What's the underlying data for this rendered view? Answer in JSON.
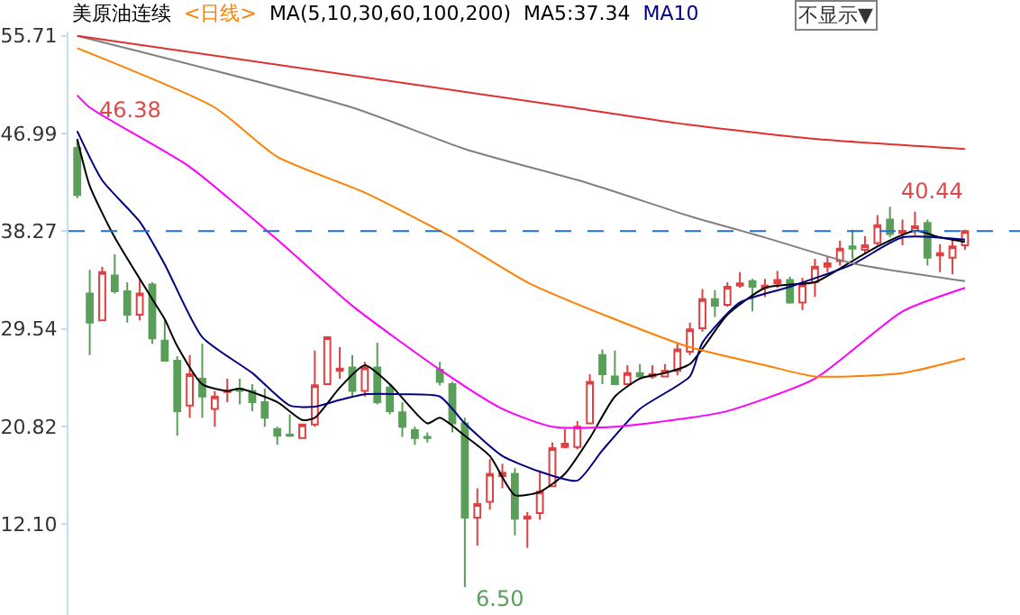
{
  "chart_data": {
    "type": "candlestick",
    "title": "美原油连续",
    "subtitle": "<日线>",
    "legend_title": "MA(5,10,30,60,100,200)",
    "legend": "top",
    "categories": [
      null,
      null,
      null,
      null,
      null,
      null,
      null,
      null,
      null,
      null,
      null,
      null,
      null,
      null,
      null,
      null,
      null,
      null,
      null,
      null,
      null,
      null,
      null,
      null,
      null,
      null,
      null,
      null,
      null,
      null,
      null,
      null,
      null,
      null,
      null,
      null,
      null,
      null,
      null,
      null,
      null,
      null,
      null,
      null,
      null,
      null,
      null,
      null,
      null,
      null,
      null,
      null,
      null,
      null,
      null,
      null,
      null,
      null,
      null,
      null,
      null,
      null,
      null,
      null,
      null,
      null,
      null,
      null,
      null,
      null,
      null,
      null
    ],
    "ohlc": [
      [
        45.7,
        46.38,
        41.2,
        41.5
      ],
      [
        32.7,
        34.8,
        27.2,
        30.1
      ],
      [
        30.3,
        35.1,
        30.3,
        34.6
      ],
      [
        34.3,
        36.2,
        32.7,
        32.9
      ],
      [
        32.9,
        33.7,
        30.1,
        30.8
      ],
      [
        30.8,
        34.0,
        30.3,
        32.7
      ],
      [
        33.5,
        33.7,
        28.2,
        28.7
      ],
      [
        28.5,
        30.3,
        26.7,
        26.7
      ],
      [
        26.7,
        27.1,
        20.0,
        22.2
      ],
      [
        22.7,
        27.2,
        21.6,
        25.5
      ],
      [
        25.1,
        28.2,
        21.6,
        23.5
      ],
      [
        22.4,
        24.0,
        20.8,
        23.5
      ],
      [
        23.9,
        25.1,
        23.0,
        24.0
      ],
      [
        24.2,
        25.1,
        22.8,
        24.0
      ],
      [
        24.0,
        24.6,
        22.2,
        23.0
      ],
      [
        23.0,
        24.2,
        20.8,
        21.6
      ],
      [
        20.6,
        20.8,
        19.2,
        20.0
      ],
      [
        20.1,
        21.9,
        19.9,
        20.0
      ],
      [
        19.8,
        21.0,
        19.8,
        21.0
      ],
      [
        21.0,
        27.6,
        20.8,
        24.5
      ],
      [
        24.6,
        28.9,
        24.6,
        28.8
      ],
      [
        25.8,
        27.9,
        25.1,
        26.0
      ],
      [
        26.1,
        27.2,
        23.5,
        24.0
      ],
      [
        24.0,
        26.6,
        23.5,
        26.1
      ],
      [
        26.1,
        28.3,
        22.8,
        23.0
      ],
      [
        24.3,
        24.6,
        21.9,
        22.2
      ],
      [
        22.1,
        23.0,
        19.9,
        20.8
      ],
      [
        20.5,
        20.8,
        19.2,
        19.8
      ],
      [
        19.9,
        20.3,
        19.4,
        19.8
      ],
      [
        25.9,
        26.6,
        24.5,
        24.8
      ],
      [
        24.6,
        24.8,
        20.3,
        21.1
      ],
      [
        21.1,
        21.6,
        6.5,
        12.7
      ],
      [
        12.7,
        15.3,
        10.2,
        13.9
      ],
      [
        14.1,
        17.9,
        13.4,
        16.6
      ],
      [
        16.4,
        17.5,
        15.3,
        16.7
      ],
      [
        16.6,
        17.1,
        11.1,
        12.6
      ],
      [
        12.6,
        13.2,
        10.0,
        12.8
      ],
      [
        13.1,
        16.9,
        12.5,
        15.0
      ],
      [
        15.5,
        19.4,
        15.5,
        18.9
      ],
      [
        19.0,
        20.6,
        18.9,
        19.3
      ],
      [
        19.0,
        21.3,
        18.8,
        20.8
      ],
      [
        21.1,
        25.5,
        21.1,
        24.8
      ],
      [
        27.2,
        27.7,
        24.6,
        25.5
      ],
      [
        25.3,
        27.6,
        24.6,
        24.6
      ],
      [
        24.6,
        26.3,
        24.5,
        25.6
      ],
      [
        25.6,
        26.4,
        25.1,
        25.3
      ],
      [
        25.3,
        26.3,
        25.1,
        25.5
      ],
      [
        25.3,
        26.4,
        25.3,
        25.8
      ],
      [
        25.8,
        28.3,
        25.4,
        27.7
      ],
      [
        27.5,
        30.1,
        27.2,
        29.5
      ],
      [
        29.6,
        33.1,
        29.3,
        32.2
      ],
      [
        32.2,
        33.0,
        30.6,
        31.6
      ],
      [
        31.7,
        33.7,
        31.5,
        33.3
      ],
      [
        33.4,
        34.6,
        33.2,
        33.6
      ],
      [
        33.8,
        34.0,
        31.1,
        33.3
      ],
      [
        33.2,
        34.0,
        32.4,
        33.4
      ],
      [
        33.6,
        34.7,
        33.2,
        33.9
      ],
      [
        33.9,
        34.2,
        31.8,
        31.9
      ],
      [
        31.9,
        34.1,
        31.2,
        33.5
      ],
      [
        33.7,
        35.8,
        32.4,
        35.1
      ],
      [
        35.1,
        36.0,
        34.6,
        35.4
      ],
      [
        35.6,
        37.4,
        35.2,
        36.7
      ],
      [
        36.9,
        38.4,
        35.8,
        36.7
      ],
      [
        36.6,
        37.8,
        36.3,
        37.0
      ],
      [
        37.2,
        39.7,
        37.0,
        38.8
      ],
      [
        39.3,
        40.44,
        37.7,
        38.0
      ],
      [
        38.1,
        39.3,
        37.0,
        38.3
      ],
      [
        38.3,
        40.0,
        37.9,
        38.7
      ],
      [
        39.0,
        39.3,
        35.2,
        35.9
      ],
      [
        36.1,
        37.1,
        34.6,
        36.3
      ],
      [
        35.9,
        37.6,
        34.4,
        36.9
      ],
      [
        37.0,
        38.4,
        36.6,
        38.27
      ]
    ],
    "series": [
      {
        "name": "MA5:37.34",
        "type": "line",
        "color": "#000000",
        "values": [
          46.5,
          42.3,
          null,
          37.7,
          null,
          null,
          32.2,
          30.4,
          28.0,
          null,
          24.6,
          null,
          24.0,
          24.2,
          null,
          null,
          23.0,
          null,
          21.4,
          21.6,
          null,
          24.3,
          null,
          26.3,
          null,
          24.6,
          null,
          null,
          21.1,
          21.6,
          null,
          20.0,
          null,
          18.2,
          null,
          14.7,
          null,
          15.0,
          null,
          16.6,
          null,
          19.8,
          null,
          23.5,
          null,
          25.1,
          null,
          25.6,
          null,
          26.4,
          null,
          null,
          30.8,
          null,
          null,
          33.2,
          null,
          33.5,
          null,
          33.7,
          null,
          null,
          35.6,
          null,
          36.9,
          null,
          null,
          38.3,
          null,
          37.7,
          null,
          37.3
        ]
      },
      {
        "name": "MA10",
        "type": "line",
        "color": "#000080",
        "values": [
          47.2,
          null,
          42.8,
          null,
          null,
          39.1,
          null,
          35.3,
          null,
          null,
          28.8,
          null,
          null,
          null,
          25.6,
          null,
          null,
          22.7,
          null,
          22.6,
          null,
          23.2,
          null,
          23.7,
          null,
          null,
          23.7,
          null,
          null,
          23.5,
          null,
          21.1,
          null,
          null,
          18.2,
          null,
          null,
          16.8,
          null,
          null,
          16.0,
          null,
          18.7,
          null,
          null,
          22.4,
          null,
          null,
          null,
          25.3,
          28.3,
          null,
          null,
          31.9,
          null,
          null,
          null,
          33.3,
          null,
          null,
          null,
          null,
          35.3,
          null,
          null,
          null,
          37.7,
          null,
          null,
          null,
          null,
          37.5
        ]
      },
      {
        "type": "line",
        "color": "#ff00ff",
        "values": [
          50.4,
          49.3,
          null,
          null,
          null,
          null,
          null,
          null,
          null,
          44.0,
          null,
          null,
          null,
          null,
          null,
          null,
          37.5,
          null,
          null,
          null,
          null,
          null,
          31.6,
          null,
          null,
          null,
          null,
          null,
          null,
          25.9,
          null,
          null,
          null,
          null,
          22.4,
          null,
          null,
          null,
          20.8,
          null,
          null,
          null,
          null,
          20.8,
          null,
          null,
          null,
          null,
          null,
          21.6,
          null,
          null,
          22.2,
          null,
          null,
          null,
          null,
          null,
          null,
          25.1,
          null,
          null,
          null,
          null,
          null,
          null,
          31.1,
          null,
          null,
          null,
          null,
          33.2
        ]
      },
      {
        "type": "line",
        "color": "#ff8000",
        "values": [
          54.6,
          null,
          null,
          null,
          null,
          null,
          null,
          null,
          null,
          null,
          null,
          49.3,
          null,
          null,
          null,
          null,
          44.9,
          null,
          null,
          null,
          null,
          null,
          null,
          41.7,
          null,
          null,
          null,
          null,
          null,
          null,
          37.7,
          null,
          null,
          null,
          null,
          null,
          33.7,
          null,
          null,
          null,
          null,
          null,
          null,
          30.4,
          null,
          null,
          null,
          null,
          null,
          27.9,
          null,
          null,
          null,
          null,
          null,
          26.3,
          null,
          null,
          null,
          25.3,
          null,
          null,
          null,
          null,
          null,
          null,
          25.6,
          null,
          null,
          null,
          null,
          26.9
        ]
      },
      {
        "type": "line",
        "color": "#808080",
        "values": [
          55.7,
          null,
          null,
          null,
          null,
          null,
          null,
          null,
          null,
          null,
          null,
          null,
          null,
          null,
          null,
          null,
          null,
          null,
          null,
          null,
          null,
          null,
          49.3,
          null,
          null,
          null,
          null,
          null,
          null,
          null,
          null,
          45.6,
          null,
          null,
          null,
          null,
          null,
          null,
          null,
          null,
          null,
          42.5,
          null,
          null,
          null,
          null,
          null,
          null,
          null,
          39.6,
          null,
          null,
          null,
          null,
          null,
          37.7,
          null,
          null,
          null,
          null,
          null,
          null,
          35.4,
          null,
          null,
          null,
          null,
          null,
          null,
          null,
          null,
          33.8
        ]
      },
      {
        "type": "line",
        "color": "#e03030",
        "values": [
          55.7,
          null,
          null,
          null,
          null,
          null,
          null,
          null,
          null,
          null,
          null,
          null,
          null,
          null,
          null,
          null,
          null,
          null,
          null,
          null,
          null,
          null,
          null,
          null,
          null,
          null,
          null,
          null,
          null,
          null,
          null,
          null,
          null,
          null,
          null,
          null,
          null,
          null,
          null,
          49.4,
          null,
          null,
          null,
          null,
          null,
          null,
          null,
          null,
          47.9,
          null,
          null,
          null,
          null,
          null,
          null,
          null,
          null,
          null,
          null,
          46.5,
          null,
          null,
          null,
          null,
          null,
          null,
          null,
          null,
          null,
          null,
          null,
          45.6
        ]
      }
    ],
    "ylim": [
      4.0,
      56.0
    ],
    "yticks": [
      {
        "value": 55.71,
        "label": "55.71"
      },
      {
        "value": 46.99,
        "label": "46.99"
      },
      {
        "value": 38.27,
        "label": "38.27"
      },
      {
        "value": 29.54,
        "label": "29.54"
      },
      {
        "value": 20.82,
        "label": "20.82"
      },
      {
        "value": 12.1,
        "label": "12.10"
      }
    ],
    "ref_lines": [
      {
        "axis": "y",
        "value": 38.27,
        "color": "#1f6fd6",
        "line_style": "dashed"
      }
    ],
    "annotations": [
      "46.38",
      "6.50",
      "40.44",
      "不显示▼"
    ]
  }
}
